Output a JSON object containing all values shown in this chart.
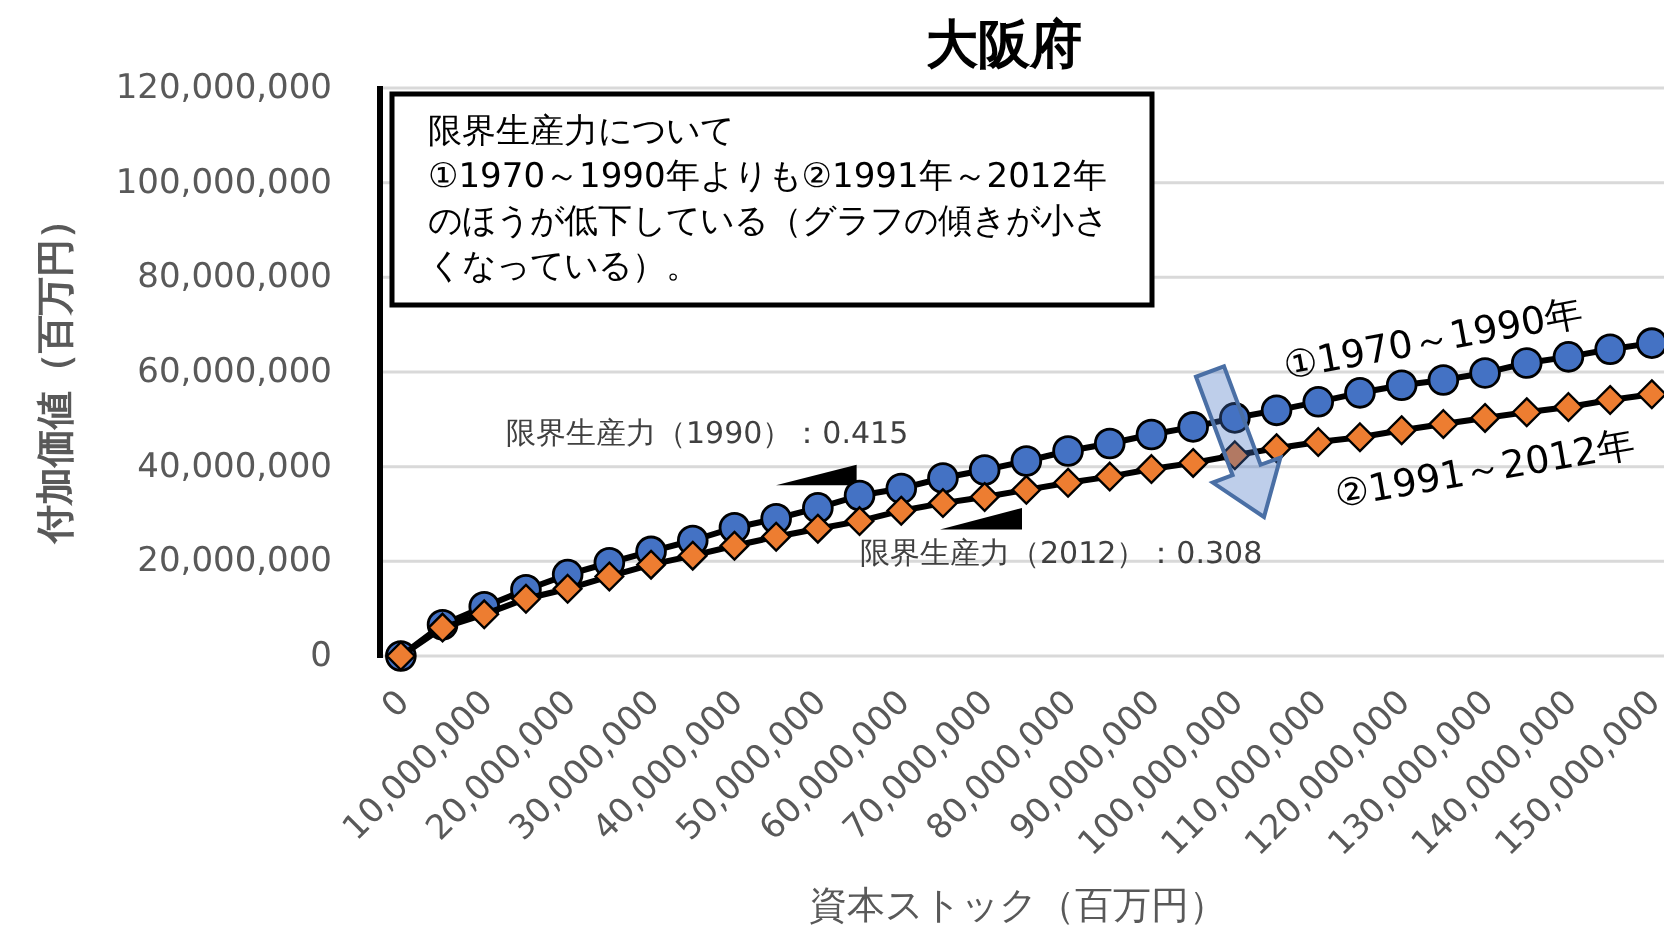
{
  "chart_data": {
    "type": "line",
    "title": "大阪府",
    "xlabel": "資本ストック（百万円）",
    "ylabel": "付加価値（百万円）",
    "categories": [
      "0",
      null,
      "10,000,000",
      null,
      "20,000,000",
      null,
      "30,000,000",
      null,
      "40,000,000",
      null,
      "50,000,000",
      null,
      "60,000,000",
      null,
      "70,000,000",
      null,
      "80,000,000",
      null,
      "90,000,000",
      null,
      "100,000,000",
      null,
      "110,000,000",
      null,
      "120,000,000",
      null,
      "130,000,000",
      null,
      "140,000,000",
      null,
      "150,000,000"
    ],
    "series": [
      {
        "name": "①1970～1990年",
        "color": "#4472c4",
        "marker": "circle",
        "values": [
          0,
          6600000,
          10400000,
          14000000,
          17200000,
          19700000,
          22100000,
          24400000,
          27100000,
          29000000,
          31300000,
          33900000,
          35400000,
          37600000,
          39300000,
          41200000,
          43300000,
          44900000,
          46800000,
          48400000,
          50300000,
          51900000,
          53700000,
          55600000,
          57200000,
          58300000,
          59800000,
          61900000,
          63200000,
          64800000,
          66100000
        ]
      },
      {
        "name": "②1991～2012年",
        "color": "#ed7d31",
        "marker": "diamond",
        "values": [
          0,
          6000000,
          8800000,
          12100000,
          14200000,
          16800000,
          19300000,
          21200000,
          23300000,
          25200000,
          26900000,
          28500000,
          30700000,
          32300000,
          33600000,
          35100000,
          36600000,
          37900000,
          39500000,
          40800000,
          42400000,
          43900000,
          45200000,
          46200000,
          47700000,
          49000000,
          50300000,
          51500000,
          52600000,
          54100000,
          55300000
        ]
      }
    ],
    "ylim": [
      0,
      120000000
    ],
    "yticks": [
      0,
      {
        "value": 20000000,
        "label": "20,000,000"
      },
      {
        "value": 40000000,
        "label": "40,000,000"
      },
      {
        "value": 60000000,
        "label": "60,000,000"
      },
      {
        "value": 80000000,
        "label": "80,000,000"
      },
      {
        "value": 100000000,
        "label": "100,000,000"
      },
      {
        "value": 120000000,
        "label": "120,000,000"
      }
    ],
    "grid": "y",
    "annotations": [
      "限界生産力について",
      "①1970～1990年よりも②1991年～2012年のほうが低下している（グラフの傾きが小さくなっている）。",
      "限界生産力（1990）：0.415",
      "限界生産力（2012）：0.308"
    ]
  }
}
